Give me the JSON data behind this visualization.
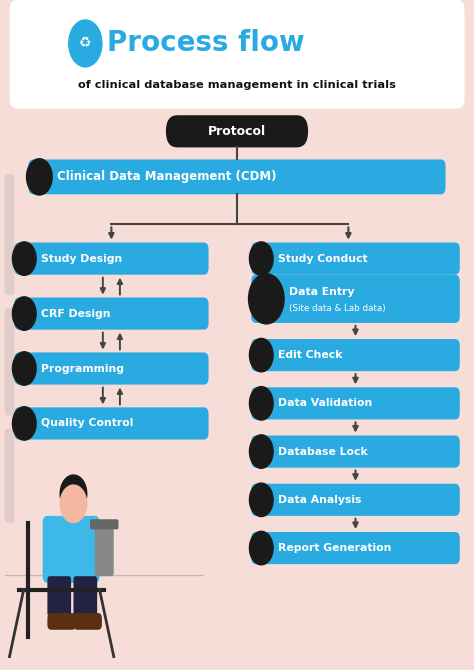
{
  "bg_color": "#f7ddd8",
  "title_color": "#29aae1",
  "title_text": "Process flow",
  "subtitle_text": "of clinical database management in clinical trials",
  "box_color": "#29aae1",
  "box_text_color": "#ffffff",
  "protocol_bg": "#1a1a1a",
  "protocol_text": "Protocol",
  "cdm_text": "Clinical Data Management (CDM)",
  "left_boxes": [
    "Study Design",
    "CRF Design",
    "Programming",
    "Quality Control"
  ],
  "right_boxes": [
    "Study Conduct",
    "Data Entry\n(Site data & Lab data)",
    "Edit Check",
    "Data Validation",
    "Database Lock",
    "Data Analysis",
    "Report Generation"
  ],
  "figsize": [
    4.74,
    6.7
  ],
  "dpi": 100
}
